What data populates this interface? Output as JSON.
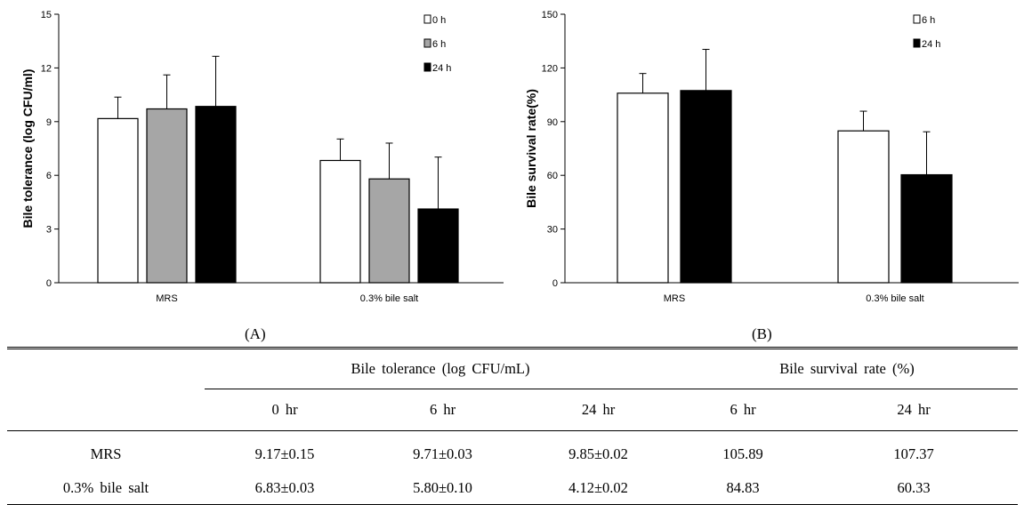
{
  "chart_data": [
    {
      "type": "bar",
      "panel": "(A)",
      "ylabel": "Bile tolerance (log CFU/ml)",
      "xlabel": "",
      "categories": [
        "MRS",
        "0.3% bile salt"
      ],
      "ylim": [
        0,
        15
      ],
      "yticks": [
        0,
        3,
        6,
        9,
        12,
        15
      ],
      "legend_position": "top-right",
      "series": [
        {
          "name": "0 h",
          "color": "#ffffff",
          "values": [
            9.17,
            6.83
          ],
          "errors": [
            1.2,
            1.2
          ]
        },
        {
          "name": "6 h",
          "color": "#a6a6a6",
          "values": [
            9.71,
            5.8
          ],
          "errors": [
            1.9,
            2.0
          ]
        },
        {
          "name": "24 h",
          "color": "#000000",
          "values": [
            9.85,
            4.12
          ],
          "errors": [
            2.8,
            2.9
          ]
        }
      ]
    },
    {
      "type": "bar",
      "panel": "(B)",
      "ylabel": "Bile survival rate(%)",
      "xlabel": "",
      "categories": [
        "MRS",
        "0.3% bile salt"
      ],
      "ylim": [
        0,
        150
      ],
      "yticks": [
        0,
        30,
        60,
        90,
        120,
        150
      ],
      "legend_position": "top-right",
      "series": [
        {
          "name": "6 h",
          "color": "#ffffff",
          "values": [
            105.89,
            84.83
          ],
          "errors": [
            11,
            11
          ]
        },
        {
          "name": "24 h",
          "color": "#000000",
          "values": [
            107.37,
            60.33
          ],
          "errors": [
            23,
            24
          ]
        }
      ]
    }
  ],
  "captions": {
    "a": "(A)",
    "b": "(B)"
  },
  "table": {
    "group_headers": [
      "Bile tolerance (log CFU/mL)",
      "Bile survival rate (%)"
    ],
    "sub_headers": [
      "0 hr",
      "6 hr",
      "24 hr",
      "6 hr",
      "24 hr"
    ],
    "rows": [
      {
        "label": "MRS",
        "cells": [
          "9.17±0.15",
          "9.71±0.03",
          "9.85±0.02",
          "105.89",
          "107.37"
        ]
      },
      {
        "label": "0.3% bile salt",
        "cells": [
          "6.83±0.03",
          "5.80±0.10",
          "4.12±0.02",
          "84.83",
          "60.33"
        ]
      }
    ]
  }
}
